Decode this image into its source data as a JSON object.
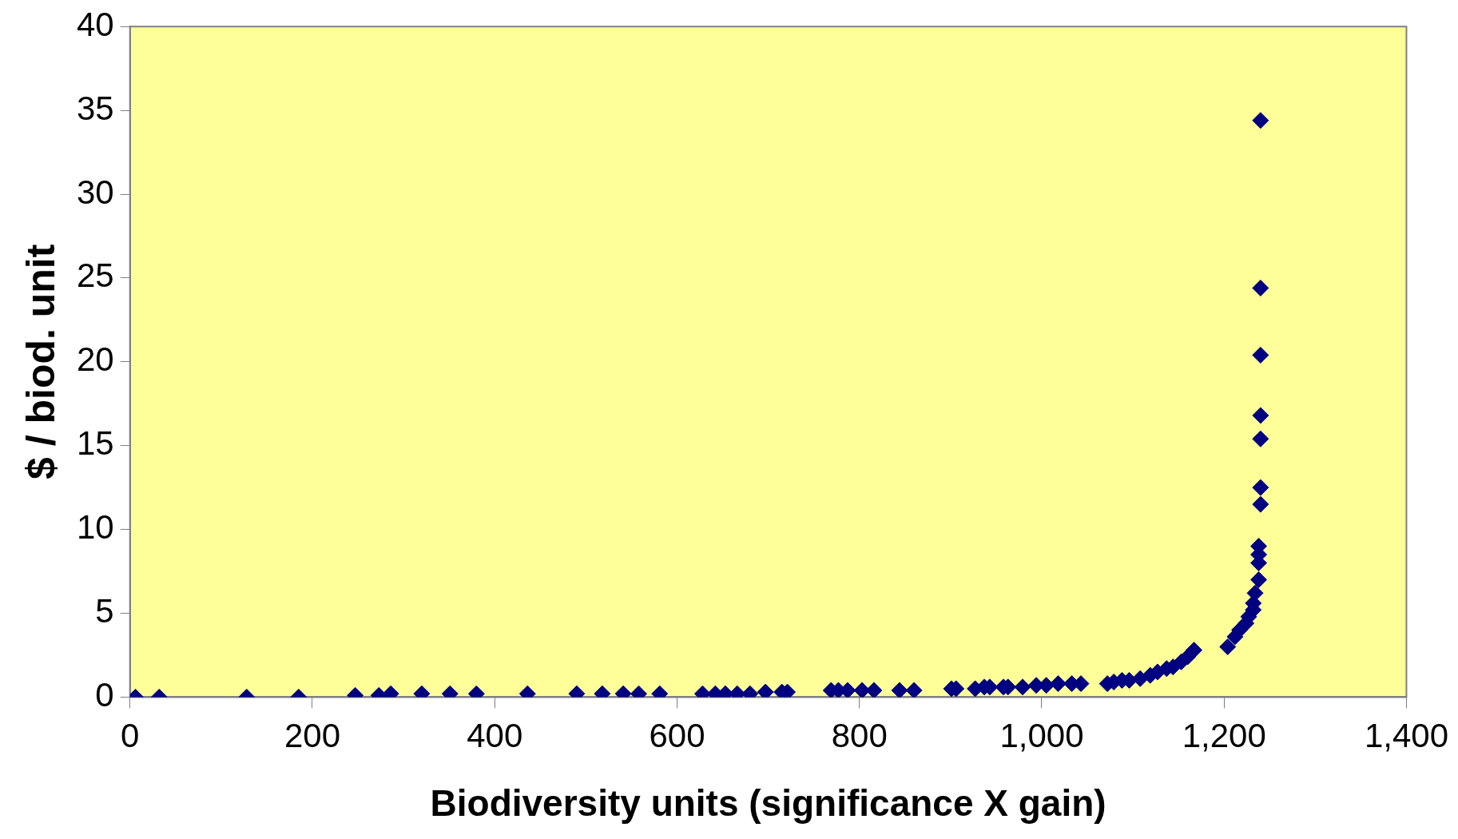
{
  "chart_data": {
    "type": "scatter",
    "xlabel": "Biodiversity units (significance X gain)",
    "ylabel": "$ / biod. unit",
    "xlim": [
      0,
      1400
    ],
    "xticks": [
      {
        "value": 0,
        "label": "0"
      },
      {
        "value": 200,
        "label": "200"
      },
      {
        "value": 400,
        "label": "400"
      },
      {
        "value": 600,
        "label": "600"
      },
      {
        "value": 800,
        "label": "800"
      },
      {
        "value": 1000,
        "label": "1,000"
      },
      {
        "value": 1200,
        "label": "1,200"
      },
      {
        "value": 1400,
        "label": "1,400"
      }
    ],
    "ylim": [
      0,
      40
    ],
    "yticks": [
      0,
      5,
      10,
      15,
      20,
      25,
      30,
      35,
      40
    ],
    "grid": false,
    "legend": false,
    "marker": "diamond",
    "series": [
      {
        "color": "#000080",
        "x": [
          6,
          32,
          128,
          185,
          247,
          273,
          286,
          320,
          351,
          380,
          436,
          490,
          518,
          541,
          558,
          581,
          628,
          642,
          653,
          666,
          680,
          697,
          715,
          721,
          769,
          777,
          787,
          803,
          816,
          844,
          860,
          901,
          906,
          927,
          937,
          943,
          958,
          963,
          979,
          994,
          1005,
          1018,
          1033,
          1043,
          1072,
          1079,
          1088,
          1096,
          1108,
          1119,
          1127,
          1137,
          1144,
          1153,
          1160,
          1167,
          1204,
          1212,
          1217,
          1224,
          1227,
          1232,
          1232,
          1234,
          1238,
          1238,
          1238,
          1238,
          1240,
          1240,
          1240,
          1240,
          1240,
          1240,
          1240
        ],
        "values": [
          0,
          0,
          0,
          0,
          0.1,
          0.1,
          0.2,
          0.2,
          0.2,
          0.2,
          0.2,
          0.2,
          0.2,
          0.2,
          0.2,
          0.2,
          0.2,
          0.2,
          0.2,
          0.2,
          0.2,
          0.3,
          0.3,
          0.3,
          0.4,
          0.4,
          0.4,
          0.4,
          0.4,
          0.4,
          0.4,
          0.5,
          0.5,
          0.5,
          0.6,
          0.6,
          0.6,
          0.6,
          0.6,
          0.7,
          0.7,
          0.8,
          0.8,
          0.8,
          0.8,
          0.9,
          1,
          1,
          1.1,
          1.3,
          1.5,
          1.7,
          1.8,
          2.1,
          2.4,
          2.8,
          3,
          3.6,
          4,
          4.4,
          4.8,
          5.2,
          5.6,
          6.2,
          7,
          8,
          8.5,
          9,
          11.5,
          12.5,
          15.4,
          16.8,
          20.4,
          24.4,
          34.4
        ]
      }
    ]
  }
}
